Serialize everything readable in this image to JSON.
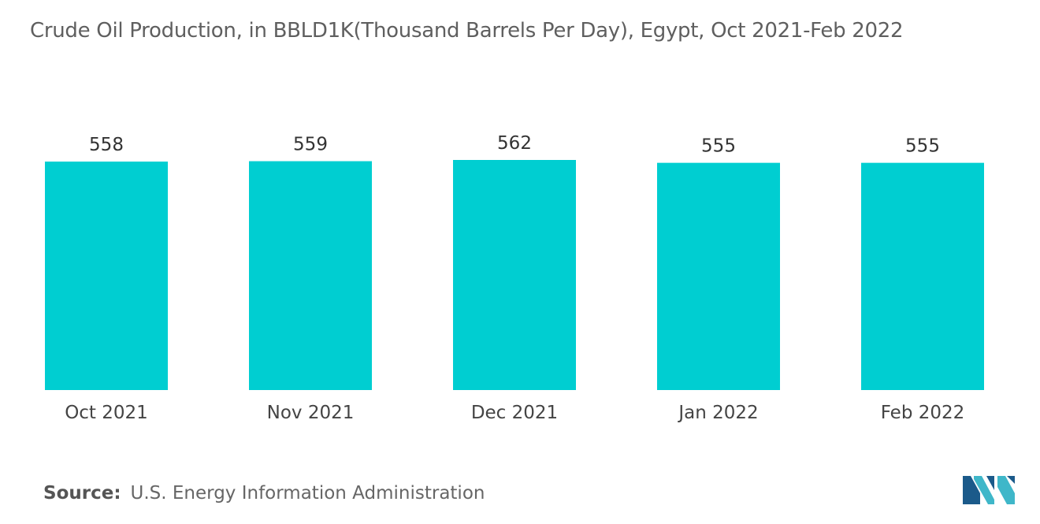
{
  "chart_data": {
    "type": "bar",
    "title": "Crude Oil Production, in BBLD1K(Thousand Barrels Per Day), Egypt, Oct 2021-Feb 2022",
    "categories": [
      "Oct 2021",
      "Nov 2021",
      "Dec 2021",
      "Jan 2022",
      "Feb 2022"
    ],
    "values": [
      558,
      559,
      562,
      555,
      555
    ],
    "data_labels": [
      "558",
      "559",
      "562",
      "555",
      "555"
    ],
    "ylim": [
      0,
      562
    ],
    "grid": false,
    "legend": "none",
    "bar_color": "#00CED1"
  },
  "source": {
    "label": "Source:",
    "text": "U.S. Energy Information Administration"
  },
  "logo": {
    "icon": "mordor-intelligence-logo",
    "colors": [
      "#1b5a8a",
      "#3fb7c9"
    ]
  }
}
